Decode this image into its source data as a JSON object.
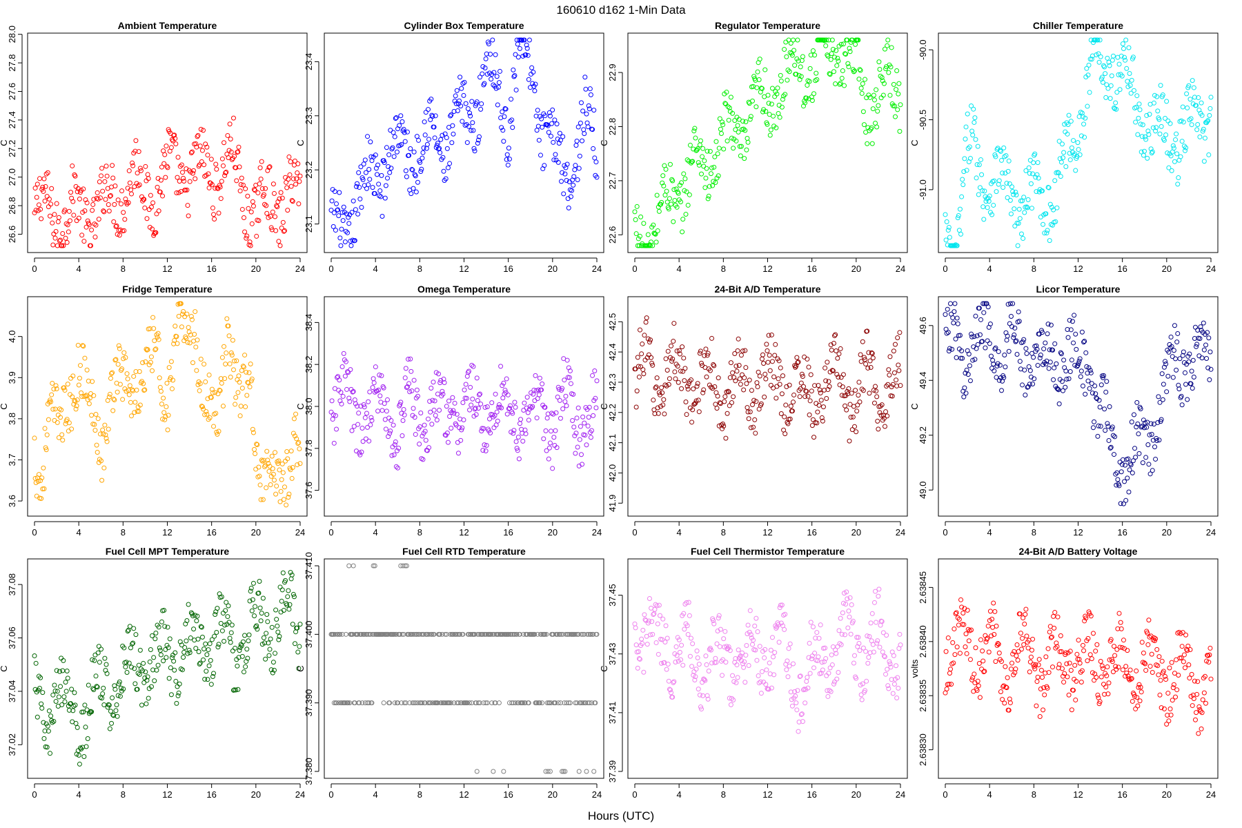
{
  "figure": {
    "title": "160610    d162    1-Min Data",
    "xlabel": "Hours (UTC)"
  },
  "chart_data": [
    {
      "type": "scatter",
      "title": "Ambient Temperature",
      "xlabel": "",
      "ylabel": "C",
      "color": "#ff0000",
      "xlim": [
        0,
        24
      ],
      "ylim": [
        26.52,
        27.96
      ],
      "xticks": [
        0,
        4,
        8,
        12,
        16,
        20,
        24
      ],
      "yticks": [
        26.6,
        26.8,
        27.0,
        27.2,
        27.4,
        27.6,
        27.8,
        28.0
      ],
      "ytick_labels": [
        "26.6",
        "26.8",
        "27.0",
        "27.2",
        "27.4",
        "27.6",
        "27.8",
        "28.0"
      ],
      "series": [
        {
          "name": "Ambient Temperature",
          "x": [
            0,
            1,
            2,
            3,
            4,
            5,
            6,
            7,
            8,
            9,
            10,
            11,
            12,
            13,
            14,
            15,
            16,
            17,
            18,
            19,
            20,
            21,
            22,
            23,
            24
          ],
          "y": [
            26.7,
            26.75,
            26.8,
            26.7,
            26.75,
            26.8,
            26.75,
            26.85,
            26.95,
            26.95,
            26.9,
            26.95,
            27.0,
            27.05,
            27.05,
            27.0,
            27.05,
            27.1,
            27.05,
            26.9,
            26.75,
            26.8,
            26.85,
            26.9,
            26.8
          ]
        }
      ]
    },
    {
      "type": "scatter",
      "title": "Cylinder Box Temperature",
      "xlabel": "",
      "ylabel": "C",
      "color": "#0000ff",
      "xlim": [
        0,
        24
      ],
      "ylim": [
        23.06,
        23.44
      ],
      "xticks": [
        0,
        4,
        8,
        12,
        16,
        20,
        24
      ],
      "yticks": [
        23.1,
        23.2,
        23.3,
        23.4
      ],
      "ytick_labels": [
        "23.1",
        "23.2",
        "23.3",
        "23.4"
      ],
      "series": [
        {
          "name": "Cylinder Box Temperature",
          "x": [
            0,
            1,
            2,
            3,
            4,
            5,
            6,
            7,
            8,
            9,
            10,
            11,
            12,
            13,
            14,
            15,
            16,
            17,
            18,
            19,
            20,
            21,
            22,
            23,
            24
          ],
          "y": [
            23.07,
            23.09,
            23.13,
            23.16,
            23.2,
            23.22,
            23.23,
            23.24,
            23.25,
            23.25,
            23.26,
            23.27,
            23.28,
            23.32,
            23.4,
            23.34,
            23.3,
            23.43,
            23.38,
            23.3,
            23.22,
            23.21,
            23.23,
            23.28,
            23.24
          ]
        }
      ]
    },
    {
      "type": "scatter",
      "title": "Regulator Temperature",
      "xlabel": "",
      "ylabel": "C",
      "color": "#00ee00",
      "xlim": [
        0,
        24
      ],
      "ylim": [
        22.58,
        22.96
      ],
      "xticks": [
        0,
        4,
        8,
        12,
        16,
        20,
        24
      ],
      "yticks": [
        22.6,
        22.7,
        22.8,
        22.9
      ],
      "ytick_labels": [
        "22.6",
        "22.7",
        "22.8",
        "22.9"
      ],
      "series": [
        {
          "name": "Regulator Temperature",
          "x": [
            0,
            1,
            2,
            3,
            4,
            5,
            6,
            7,
            8,
            9,
            10,
            11,
            12,
            13,
            14,
            15,
            16,
            17,
            18,
            19,
            20,
            21,
            22,
            23,
            24
          ],
          "y": [
            22.58,
            22.6,
            22.62,
            22.66,
            22.69,
            22.71,
            22.73,
            22.75,
            22.77,
            22.79,
            22.81,
            22.83,
            22.85,
            22.87,
            22.9,
            22.93,
            22.91,
            22.92,
            22.96,
            22.94,
            22.9,
            22.86,
            22.86,
            22.88,
            22.88
          ]
        }
      ]
    },
    {
      "type": "scatter",
      "title": "Chiller Temperature",
      "xlabel": "",
      "ylabel": "C",
      "color": "#00e5ee",
      "xlim": [
        0,
        24
      ],
      "ylim": [
        -91.4,
        -89.93
      ],
      "xticks": [
        0,
        4,
        8,
        12,
        16,
        20,
        24
      ],
      "yticks": [
        -91.0,
        -90.5,
        -90.0
      ],
      "ytick_labels": [
        "-91.0",
        "-90.5",
        "-90.0"
      ],
      "series": [
        {
          "name": "Chiller Temperature",
          "x": [
            0,
            0.8,
            1.5,
            2.0,
            2.5,
            3,
            4,
            5,
            6,
            7,
            8,
            9,
            10,
            11,
            12,
            13,
            13.5,
            14,
            15,
            16,
            17,
            18,
            19,
            20,
            21,
            22,
            23,
            24
          ],
          "y": [
            -91.3,
            -91.4,
            -91.1,
            -90.8,
            -90.7,
            -90.8,
            -90.9,
            -91.0,
            -91.0,
            -91.1,
            -91.1,
            -91.0,
            -91.0,
            -90.8,
            -90.5,
            -90.2,
            -90.0,
            -90.1,
            -90.05,
            -90.2,
            -90.3,
            -90.5,
            -90.6,
            -90.6,
            -90.6,
            -90.6,
            -90.5,
            -90.4
          ]
        }
      ]
    },
    {
      "type": "scatter",
      "title": "Fridge Temperature",
      "xlabel": "",
      "ylabel": "C",
      "color": "#ffa500",
      "xlim": [
        0,
        24
      ],
      "ylim": [
        3.58,
        4.08
      ],
      "xticks": [
        0,
        4,
        8,
        12,
        16,
        20,
        24
      ],
      "yticks": [
        3.6,
        3.7,
        3.8,
        3.9,
        4.0
      ],
      "ytick_labels": [
        "3.6",
        "3.7",
        "3.8",
        "3.9",
        "4.0"
      ],
      "series": [
        {
          "name": "Fridge Temperature",
          "x": [
            0,
            0.6,
            1.2,
            2.0,
            3.0,
            4.0,
            5.0,
            5.5,
            6.0,
            7.0,
            8.0,
            9.0,
            10.0,
            11.0,
            12.0,
            13.5,
            14.5,
            15.5,
            16.5,
            17.5,
            18.5,
            19.5,
            20.5,
            21.5,
            22.5,
            23.5,
            24.0
          ],
          "y": [
            3.76,
            3.68,
            3.77,
            3.76,
            3.88,
            3.91,
            3.79,
            3.86,
            3.77,
            3.84,
            3.89,
            3.92,
            3.85,
            3.98,
            3.88,
            4.0,
            4.06,
            3.82,
            3.77,
            4.07,
            3.81,
            3.86,
            3.72,
            3.59,
            3.65,
            3.82,
            3.7
          ]
        }
      ]
    },
    {
      "type": "scatter",
      "title": "Omega Temperature",
      "xlabel": "",
      "ylabel": "C",
      "color": "#a020f0",
      "xlim": [
        0,
        24
      ],
      "ylim": [
        37.51,
        38.49
      ],
      "xticks": [
        0,
        4,
        8,
        12,
        16,
        20,
        24
      ],
      "yticks": [
        37.6,
        37.8,
        38.0,
        38.2,
        38.4
      ],
      "ytick_labels": [
        "37.6",
        "37.8",
        "38.0",
        "38.2",
        "38.4"
      ],
      "series": [
        {
          "name": "Omega Temperature",
          "x": [
            0,
            1,
            2,
            3,
            4,
            5,
            6,
            7,
            8,
            9,
            10,
            11,
            12,
            13,
            14,
            15,
            16,
            17,
            18,
            19,
            20,
            21,
            22,
            23,
            24
          ],
          "y": [
            38.0,
            38.05,
            37.95,
            38.0,
            37.95,
            38.0,
            37.9,
            38.0,
            37.95,
            38.0,
            37.9,
            38.0,
            38.0,
            37.95,
            38.0,
            38.0,
            37.95,
            38.0,
            37.9,
            38.0,
            37.95,
            38.0,
            37.9,
            38.0,
            37.95
          ]
        }
      ]
    },
    {
      "type": "scatter",
      "title": "24-Bit A/D Temperature",
      "xlabel": "",
      "ylabel": "C",
      "color": "#8b0000",
      "xlim": [
        0,
        24
      ],
      "ylim": [
        41.88,
        42.56
      ],
      "xticks": [
        0,
        4,
        8,
        12,
        16,
        20,
        24
      ],
      "yticks": [
        41.9,
        42.0,
        42.1,
        42.2,
        42.3,
        42.4,
        42.5
      ],
      "ytick_labels": [
        "41.9",
        "42.0",
        "42.1",
        "42.2",
        "42.3",
        "42.4",
        "42.5"
      ],
      "series": [
        {
          "name": "24-Bit A/D Temperature",
          "x": [
            0,
            1,
            2,
            3,
            4,
            5,
            6,
            7,
            8,
            9,
            10,
            11,
            12,
            13,
            14,
            15,
            16,
            17,
            18,
            19,
            20,
            21,
            22,
            23,
            24
          ],
          "y": [
            42.3,
            42.35,
            42.3,
            42.35,
            42.3,
            42.3,
            42.3,
            42.3,
            42.25,
            42.3,
            42.3,
            42.3,
            42.3,
            42.3,
            42.3,
            42.25,
            42.25,
            42.3,
            42.3,
            42.3,
            42.25,
            42.3,
            42.3,
            42.3,
            42.3
          ]
        }
      ]
    },
    {
      "type": "scatter",
      "title": "Licor Temperature",
      "xlabel": "",
      "ylabel": "C",
      "color": "#000080",
      "xlim": [
        0,
        24
      ],
      "ylim": [
        48.93,
        49.68
      ],
      "xticks": [
        0,
        4,
        8,
        12,
        16,
        20,
        24
      ],
      "yticks": [
        49.0,
        49.2,
        49.4,
        49.6
      ],
      "ytick_labels": [
        "49.0",
        "49.2",
        "49.4",
        "49.6"
      ],
      "series": [
        {
          "name": "Licor Temperature",
          "x": [
            0,
            1,
            2,
            3,
            4,
            5,
            6,
            7,
            8,
            9,
            10,
            11,
            12,
            13,
            14,
            15,
            16,
            17,
            18,
            19,
            20,
            21,
            22,
            23,
            24
          ],
          "y": [
            49.5,
            49.55,
            49.5,
            49.55,
            49.55,
            49.5,
            49.55,
            49.5,
            49.5,
            49.45,
            49.5,
            49.5,
            49.45,
            49.45,
            49.3,
            49.15,
            49.1,
            49.15,
            49.1,
            49.3,
            49.4,
            49.45,
            49.5,
            49.5,
            49.45
          ]
        }
      ]
    },
    {
      "type": "scatter",
      "title": "Fuel Cell MPT Temperature",
      "xlabel": "",
      "ylabel": "C",
      "color": "#006400",
      "xlim": [
        0,
        24
      ],
      "ylim": [
        37.01,
        37.087
      ],
      "xticks": [
        0,
        4,
        8,
        12,
        16,
        20,
        24
      ],
      "yticks": [
        37.02,
        37.04,
        37.06,
        37.08
      ],
      "ytick_labels": [
        "37.02",
        "37.04",
        "37.06",
        "37.08"
      ],
      "series": [
        {
          "name": "Fuel Cell MPT Temperature",
          "x": [
            0,
            1,
            2,
            3,
            4,
            5,
            6,
            7,
            8,
            9,
            10,
            11,
            12,
            13,
            14,
            15,
            16,
            17,
            18,
            19,
            20,
            21,
            22,
            23,
            24
          ],
          "y": [
            37.035,
            37.03,
            37.04,
            37.035,
            37.03,
            37.035,
            37.04,
            37.045,
            37.045,
            37.05,
            37.055,
            37.05,
            37.055,
            37.055,
            37.055,
            37.06,
            37.06,
            37.06,
            37.055,
            37.06,
            37.065,
            37.065,
            37.065,
            37.07,
            37.065
          ]
        }
      ]
    },
    {
      "type": "scatter",
      "title": "Fuel Cell RTD Temperature",
      "xlabel": "",
      "ylabel": "C",
      "color": "#808080",
      "xlim": [
        0,
        24
      ],
      "ylim": [
        37.38,
        37.41
      ],
      "xticks": [
        0,
        4,
        8,
        12,
        16,
        20,
        24
      ],
      "yticks": [
        37.38,
        37.39,
        37.4,
        37.41
      ],
      "ytick_labels": [
        "37.380",
        "37.390",
        "37.400",
        "37.410"
      ],
      "series": [
        {
          "name": "Fuel Cell RTD Temperature",
          "x": [
            0,
            1,
            2,
            3,
            4,
            5,
            6,
            7,
            8,
            9,
            10,
            11,
            12,
            13,
            14,
            15,
            16,
            17,
            18,
            19,
            20,
            21,
            22,
            23,
            24
          ],
          "y": [
            37.4,
            37.41,
            37.4,
            37.39,
            37.41,
            37.39,
            37.4,
            37.4,
            37.4,
            37.39,
            37.4,
            37.39,
            37.39,
            37.39,
            37.38,
            37.39,
            37.38,
            37.39,
            37.4,
            37.39,
            37.38,
            37.39,
            37.4,
            37.39,
            37.4
          ]
        }
      ]
    },
    {
      "type": "scatter",
      "title": "Fuel Cell Thermistor Temperature",
      "xlabel": "",
      "ylabel": "C",
      "color": "#ee82ee",
      "xlim": [
        0,
        24
      ],
      "ylim": [
        37.39,
        37.46
      ],
      "xticks": [
        0,
        4,
        8,
        12,
        16,
        20,
        24
      ],
      "yticks": [
        37.39,
        37.41,
        37.43,
        37.45
      ],
      "ytick_labels": [
        "37.39",
        "37.41",
        "37.43",
        "37.45"
      ],
      "series": [
        {
          "name": "Fuel Cell Thermistor Temperature",
          "x": [
            0,
            1,
            2,
            3,
            4,
            5,
            6,
            7,
            8,
            9,
            10,
            11,
            12,
            13,
            14,
            15,
            16,
            17,
            18,
            19,
            20,
            21,
            22,
            23,
            24
          ],
          "y": [
            37.435,
            37.44,
            37.43,
            37.435,
            37.43,
            37.43,
            37.425,
            37.43,
            37.425,
            37.43,
            37.425,
            37.43,
            37.43,
            37.43,
            37.425,
            37.42,
            37.425,
            37.43,
            37.43,
            37.435,
            37.435,
            37.43,
            37.435,
            37.43,
            37.43
          ]
        }
      ]
    },
    {
      "type": "scatter",
      "title": "24-Bit A/D Battery Voltage",
      "xlabel": "",
      "ylabel": "volts",
      "color": "#ff0000",
      "xlim": [
        0,
        24
      ],
      "ylim": [
        2.63828,
        2.63847
      ],
      "xticks": [
        0,
        4,
        8,
        12,
        16,
        20,
        24
      ],
      "yticks": [
        2.6383,
        2.63835,
        2.6384,
        2.63845
      ],
      "ytick_labels": [
        "2.63830",
        "2.63835",
        "2.63840",
        "2.63845"
      ],
      "series": [
        {
          "name": "24-Bit A/D Battery Voltage",
          "x": [
            0,
            1,
            2,
            3,
            4,
            5,
            6,
            7,
            8,
            9,
            10,
            11,
            12,
            13,
            14,
            15,
            16,
            17,
            18,
            19,
            20,
            21,
            22,
            23,
            24
          ],
          "y": [
            2.6384,
            2.63839,
            2.6384,
            2.63839,
            2.6384,
            2.63838,
            2.63838,
            2.63839,
            2.63838,
            2.63838,
            2.63838,
            2.63839,
            2.63838,
            2.63838,
            2.63838,
            2.63838,
            2.63838,
            2.63838,
            2.63838,
            2.63837,
            2.63837,
            2.63837,
            2.63837,
            2.63836,
            2.63837
          ]
        }
      ]
    }
  ]
}
